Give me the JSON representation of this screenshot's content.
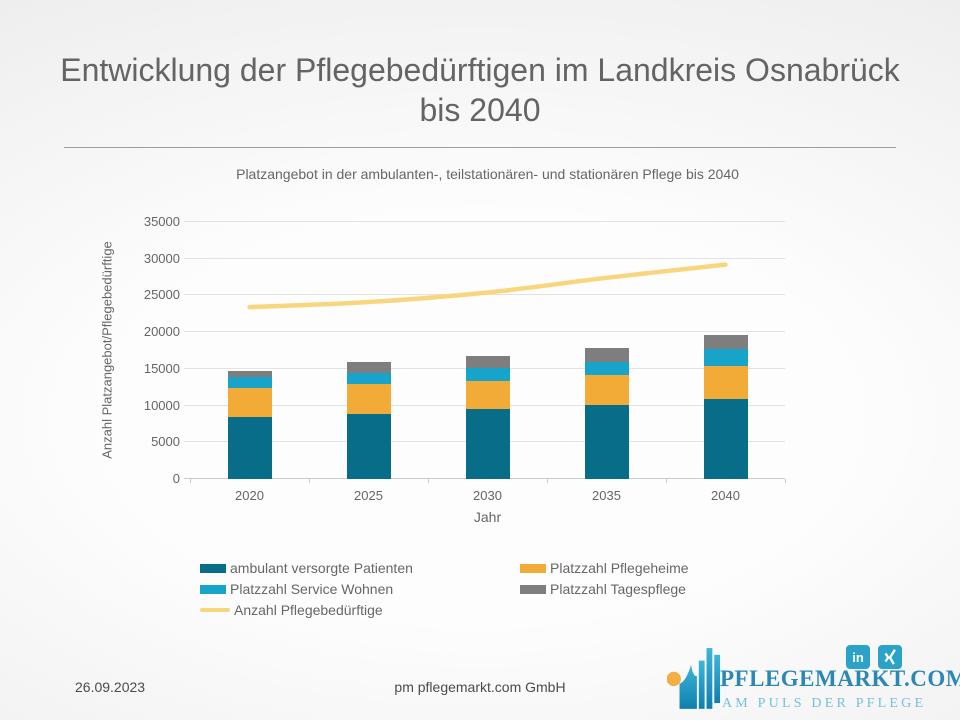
{
  "slide": {
    "title": "Entwicklung der Pflegebedürftigen im Landkreis Osnabrück bis 2040",
    "footer": {
      "date": "26.09.2023",
      "company": "pm pflegemarkt.com GmbH"
    },
    "logo": {
      "name": "PFLEGEMARKT.COM",
      "tagline": "AM PULS DER PFLEGE",
      "linkedin_label": "in",
      "social": [
        "linkedin-icon",
        "xing-icon"
      ],
      "accent_blue": "#2b87b4",
      "accent_cyan": "#2ba3c9",
      "accent_orange": "#f2b043"
    }
  },
  "chart_data": {
    "type": "bar",
    "subtype": "stacked bars with line overlay",
    "title": "Platzangebot in der ambulanten-, teilstationären- und stationären Pflege bis 2040",
    "xlabel": "Jahr",
    "ylabel": "Anzahl Platzangebot/Pflegebedürftige",
    "ylim": [
      0,
      35000
    ],
    "yticks": [
      0,
      5000,
      10000,
      15000,
      20000,
      25000,
      30000,
      35000
    ],
    "grid": true,
    "legend_position": "bottom",
    "categories": [
      "2020",
      "2025",
      "2030",
      "2035",
      "2040"
    ],
    "series": [
      {
        "name": "ambulant versorgte Patienten",
        "type": "bar",
        "color": "#086d89",
        "values": [
          8500,
          8900,
          9600,
          10100,
          10900
        ]
      },
      {
        "name": "Platzzahl Pflegeheime",
        "type": "bar",
        "color": "#f3ab37",
        "values": [
          3900,
          4000,
          3800,
          4100,
          4500
        ]
      },
      {
        "name": "Platzzahl Service Wohnen",
        "type": "bar",
        "color": "#18a3ca",
        "values": [
          1500,
          1500,
          1700,
          1700,
          2300
        ]
      },
      {
        "name": "Platzzahl Tagespflege",
        "type": "bar",
        "color": "#7e7e7e",
        "values": [
          800,
          1500,
          1700,
          1900,
          1900
        ]
      },
      {
        "name": "Anzahl Pflegebedürftige",
        "type": "line",
        "color": "#f8d67d",
        "values": [
          23400,
          24100,
          25400,
          27400,
          29200
        ]
      }
    ],
    "stacked_totals": [
      14700,
      15900,
      16800,
      17800,
      19600
    ],
    "legend": {
      "columns": [
        [
          0,
          2,
          4
        ],
        [
          1,
          3
        ]
      ]
    }
  }
}
